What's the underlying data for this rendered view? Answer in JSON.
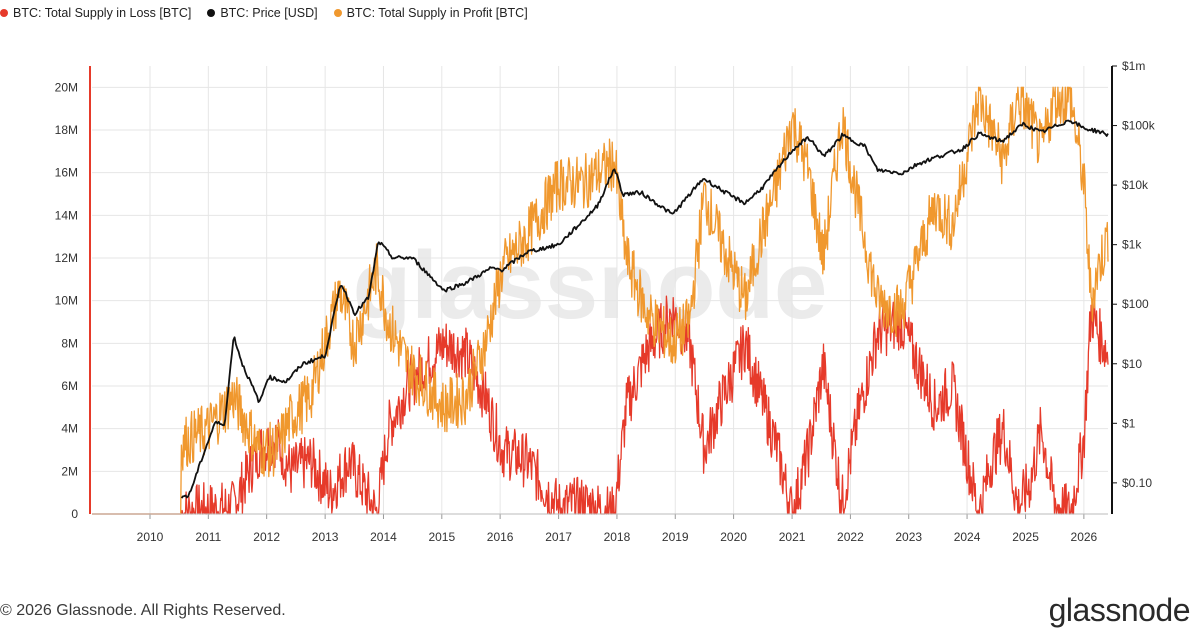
{
  "colors": {
    "loss": "#e63a2a",
    "price": "#111111",
    "profit": "#f0982e",
    "grid": "#e6e6e6",
    "axis_text": "#333333",
    "watermark": "#ebebeb"
  },
  "watermark": "glassnode",
  "footer": {
    "copyright": "© 2026 Glassnode. All Rights Reserved.",
    "logo": "glassnode"
  },
  "chart_data": {
    "type": "line",
    "title": "",
    "xlabel": "",
    "ylabel": "",
    "x_ticks": [
      "2010",
      "2011",
      "2012",
      "2013",
      "2014",
      "2015",
      "2016",
      "2017",
      "2018",
      "2019",
      "2020",
      "2021",
      "2022",
      "2023",
      "2024",
      "2025",
      "2026"
    ],
    "y_left": {
      "range": [
        0,
        21000000
      ],
      "ticks": [
        0,
        2000000,
        4000000,
        6000000,
        8000000,
        10000000,
        12000000,
        14000000,
        16000000,
        18000000,
        20000000
      ],
      "tick_labels": [
        "0",
        "2M",
        "4M",
        "6M",
        "8M",
        "10M",
        "12M",
        "14M",
        "16M",
        "18M",
        "20M"
      ]
    },
    "y_right": {
      "scale": "log",
      "range": [
        0.03,
        1000000
      ],
      "ticks": [
        0.1,
        1,
        10,
        100,
        1000,
        10000,
        100000,
        1000000
      ],
      "tick_labels": [
        "$0.10",
        "$1",
        "$10",
        "$100",
        "$1k",
        "$10k",
        "$100k",
        "$1m"
      ]
    },
    "legend_position": "top-left",
    "grid": true,
    "series": [
      {
        "name": "BTC: Total Supply in Loss [BTC]",
        "axis": "left",
        "color": "#e63a2a",
        "x": [
          "2009-01-03",
          "2010-07-15",
          "2010-12-01",
          "2011-06-01",
          "2011-11-15",
          "2012-03-01",
          "2012-06-01",
          "2012-10-01",
          "2013-02-01",
          "2013-06-01",
          "2013-11-20",
          "2014-02-01",
          "2014-06-01",
          "2015-01-15",
          "2015-06-01",
          "2015-10-01",
          "2016-01-15",
          "2016-06-15",
          "2017-01-01",
          "2017-06-01",
          "2017-12-15",
          "2018-03-01",
          "2018-07-01",
          "2018-12-15",
          "2019-04-01",
          "2019-07-01",
          "2019-10-01",
          "2020-03-15",
          "2020-06-01",
          "2020-10-01",
          "2021-01-01",
          "2021-04-15",
          "2021-07-15",
          "2021-11-10",
          "2022-03-01",
          "2022-06-20",
          "2022-11-15",
          "2023-03-01",
          "2023-06-15",
          "2023-10-01",
          "2024-03-15",
          "2024-06-01",
          "2024-08-15",
          "2024-11-15",
          "2025-02-01",
          "2025-04-10",
          "2025-07-01",
          "2025-10-10",
          "2026-01-01",
          "2026-02-15",
          "2026-04-01",
          "2026-06-01"
        ],
        "y": [
          0,
          0,
          200000,
          300000,
          3000000,
          3500000,
          2000000,
          2500000,
          1000000,
          2500000,
          0,
          4000000,
          6000000,
          8000000,
          7500000,
          5500000,
          3000000,
          2500000,
          300000,
          500000,
          0,
          5000000,
          7500000,
          9500000,
          8000000,
          3000000,
          5000000,
          8000000,
          6000000,
          3000000,
          0,
          3000000,
          7000000,
          500000,
          5000000,
          8500000,
          9000000,
          7000000,
          5000000,
          6000000,
          0,
          2500000,
          4000000,
          300000,
          1500000,
          4000000,
          500000,
          0,
          3500000,
          9500000,
          8500000,
          7500000
        ]
      },
      {
        "name": "BTC: Price [USD]",
        "axis": "right",
        "color": "#111111",
        "x": [
          "2010-07-18",
          "2010-09-01",
          "2010-12-01",
          "2011-02-10",
          "2011-04-15",
          "2011-06-08",
          "2011-08-01",
          "2011-11-18",
          "2012-01-10",
          "2012-05-01",
          "2012-08-15",
          "2012-12-31",
          "2013-04-09",
          "2013-07-05",
          "2013-10-01",
          "2013-11-30",
          "2014-03-01",
          "2014-07-01",
          "2015-01-14",
          "2015-06-01",
          "2015-11-04",
          "2016-01-15",
          "2016-06-17",
          "2017-01-01",
          "2017-06-01",
          "2017-09-01",
          "2017-12-17",
          "2018-02-06",
          "2018-06-01",
          "2018-12-15",
          "2019-06-26",
          "2019-12-18",
          "2020-03-13",
          "2020-07-01",
          "2021-01-08",
          "2021-04-14",
          "2021-07-20",
          "2021-11-10",
          "2022-04-01",
          "2022-06-18",
          "2022-11-21",
          "2023-03-01",
          "2023-07-01",
          "2023-12-01",
          "2024-03-14",
          "2024-08-05",
          "2024-12-17",
          "2025-04-08",
          "2025-10-06",
          "2026-01-01",
          "2026-04-01",
          "2026-06-01"
        ],
        "y": [
          0.06,
          0.06,
          0.3,
          1,
          1,
          30,
          10,
          2.2,
          6,
          5,
          10,
          13.5,
          230,
          70,
          130,
          1150,
          600,
          600,
          170,
          230,
          400,
          380,
          750,
          1000,
          2500,
          4500,
          19500,
          7000,
          7500,
          3200,
          13000,
          6500,
          5000,
          9200,
          40000,
          63000,
          30000,
          68000,
          45000,
          18000,
          15800,
          23000,
          30000,
          40000,
          73000,
          54000,
          106000,
          77000,
          124000,
          90000,
          80000,
          70000
        ]
      },
      {
        "name": "BTC: Total Supply in Profit [BTC]",
        "axis": "left",
        "color": "#f0982e",
        "x": [
          "2009-01-03",
          "2010-07-15",
          "2010-07-16",
          "2011-01-01",
          "2011-06-08",
          "2011-11-15",
          "2012-03-01",
          "2012-06-01",
          "2012-10-01",
          "2013-04-01",
          "2013-07-01",
          "2013-11-20",
          "2014-02-01",
          "2014-06-01",
          "2015-01-15",
          "2015-06-01",
          "2015-10-01",
          "2016-01-15",
          "2016-06-15",
          "2017-01-01",
          "2017-06-01",
          "2017-12-15",
          "2018-03-01",
          "2018-07-01",
          "2018-12-15",
          "2019-04-01",
          "2019-07-01",
          "2019-10-01",
          "2020-03-15",
          "2020-06-01",
          "2020-10-01",
          "2021-01-01",
          "2021-04-15",
          "2021-07-15",
          "2021-11-10",
          "2022-03-01",
          "2022-06-20",
          "2022-11-15",
          "2023-03-01",
          "2023-06-15",
          "2023-10-01",
          "2024-03-15",
          "2024-06-01",
          "2024-08-15",
          "2024-11-15",
          "2025-02-01",
          "2025-04-10",
          "2025-07-01",
          "2025-10-10",
          "2026-01-01",
          "2026-02-15",
          "2026-04-01",
          "2026-06-01"
        ],
        "y": [
          0,
          0,
          3300000,
          4000000,
          5500000,
          3000000,
          3000000,
          4500000,
          5500000,
          10500000,
          8000000,
          11500000,
          9000000,
          7000000,
          5000000,
          5500000,
          8000000,
          11500000,
          13000000,
          15500000,
          15500000,
          16500000,
          12000000,
          9500000,
          8000000,
          9000000,
          15000000,
          13000000,
          10000000,
          12500000,
          15500000,
          18500000,
          16000000,
          12000000,
          18500000,
          14000000,
          10000000,
          9500000,
          12000000,
          14500000,
          13500000,
          19500000,
          18000000,
          16500000,
          19500000,
          18500000,
          17000000,
          19500000,
          19500000,
          15500000,
          10000000,
          11500000,
          13000000
        ]
      }
    ]
  }
}
